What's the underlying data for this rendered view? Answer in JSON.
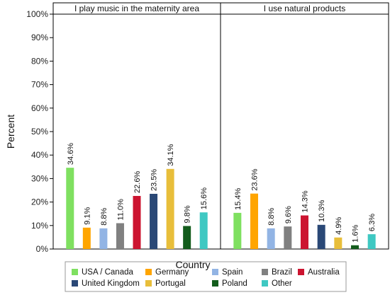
{
  "chart_data": {
    "type": "bar",
    "ylabel": "Percent",
    "ylim": [
      0,
      100
    ],
    "yticks": [
      "0%",
      "10%",
      "20%",
      "30%",
      "40%",
      "50%",
      "60%",
      "70%",
      "80%",
      "90%",
      "100%"
    ],
    "grid": false,
    "legend_placement": "bottom",
    "legend_title": "Country",
    "categories": [
      "USA / Canada",
      "Germany",
      "Spain",
      "Brazil",
      "Australia",
      "United Kingdom",
      "Portugal",
      "Poland",
      "Other"
    ],
    "colors": [
      "#7FE060",
      "#FFA500",
      "#92B4E4",
      "#808080",
      "#CC1430",
      "#2A4876",
      "#E8BE3A",
      "#135C1C",
      "#3FC8C2"
    ],
    "panels": [
      {
        "title": "I play music in the maternity area",
        "values": [
          34.6,
          9.1,
          8.8,
          11.0,
          22.6,
          23.5,
          34.1,
          9.8,
          15.6
        ],
        "labels": [
          "34.6%",
          "9.1%",
          "8.8%",
          "11.0%",
          "22.6%",
          "23.5%",
          "34.1%",
          "9.8%",
          "15.6%"
        ]
      },
      {
        "title": "I use natural products",
        "values": [
          15.4,
          23.6,
          8.8,
          9.6,
          14.3,
          10.3,
          4.9,
          1.6,
          6.3
        ],
        "labels": [
          "15.4%",
          "23.6%",
          "8.8%",
          "9.6%",
          "14.3%",
          "10.3%",
          "4.9%",
          "1.6%",
          "6.3%"
        ]
      }
    ]
  }
}
